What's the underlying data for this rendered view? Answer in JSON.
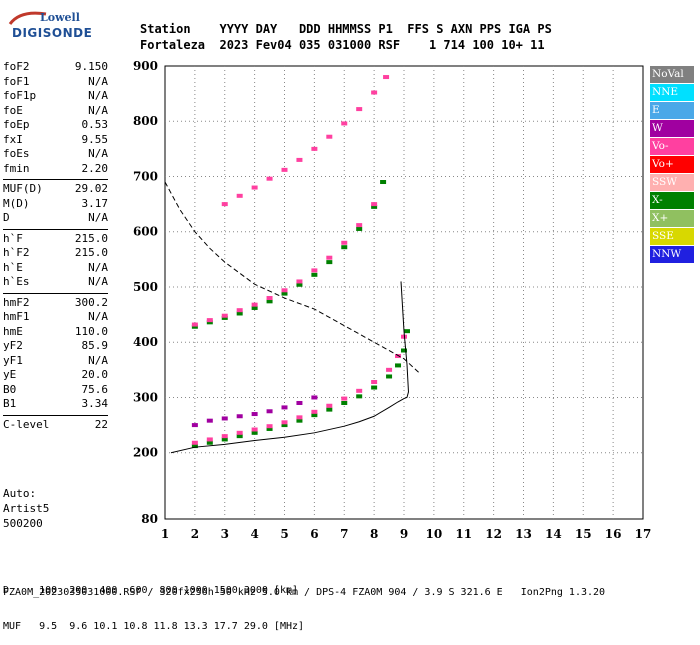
{
  "logo": {
    "line1": "Lowell",
    "line2": "DIGISONDE"
  },
  "header": {
    "row1": "Station    YYYY DAY   DDD HHMMSS P1  FFS S AXN PPS IGA PS",
    "row2": "Fortaleza  2023 Fev04 035 031000 RSF    1 714 100 10+ 11"
  },
  "params": [
    [
      [
        "foF2",
        "9.150"
      ],
      [
        "foF1",
        "N/A"
      ],
      [
        "foF1p",
        "N/A"
      ],
      [
        "foE",
        "N/A"
      ],
      [
        "foEp",
        "0.53"
      ],
      [
        "fxI",
        "9.55"
      ],
      [
        "foEs",
        "N/A"
      ],
      [
        "fmin",
        "2.20"
      ]
    ],
    [
      [
        "MUF(D)",
        "29.02"
      ],
      [
        "M(D)",
        "3.17"
      ],
      [
        "D",
        "N/A"
      ]
    ],
    [
      [
        "h`F",
        "215.0"
      ],
      [
        "h`F2",
        "215.0"
      ],
      [
        "h`E",
        "N/A"
      ],
      [
        "h`Es",
        "N/A"
      ]
    ],
    [
      [
        "hmF2",
        "300.2"
      ],
      [
        "hmF1",
        "N/A"
      ],
      [
        "hmE",
        "110.0"
      ],
      [
        "yF2",
        "85.9"
      ],
      [
        "yF1",
        "N/A"
      ],
      [
        "yE",
        "20.0"
      ],
      [
        "B0",
        "75.6"
      ],
      [
        "B1",
        "3.34"
      ]
    ],
    [
      [
        "C-level",
        "22"
      ]
    ]
  ],
  "auto": {
    "line1": "Auto:",
    "line2": "Artist5",
    "line3": "500200"
  },
  "legend": [
    {
      "label": "NoVal",
      "color": "#808080"
    },
    {
      "label": "NNE",
      "color": "#00e0ff"
    },
    {
      "label": "E",
      "color": "#4aa8e8"
    },
    {
      "label": "W",
      "color": "#a000a0"
    },
    {
      "label": "Vo-",
      "color": "#ff40a0"
    },
    {
      "label": "Vo+",
      "color": "#ff0000"
    },
    {
      "label": "SSW",
      "color": "#ffb0b0"
    },
    {
      "label": "X-",
      "color": "#008000"
    },
    {
      "label": "X+",
      "color": "#90c060"
    },
    {
      "label": "SSE",
      "color": "#d8d800"
    },
    {
      "label": "NNW",
      "color": "#2020e0"
    }
  ],
  "footer": {
    "line1": "D     100  200  400  600  800 1000 1500 3000 [km]",
    "line2": "MUF   9.5  9.6 10.1 10.8 11.8 13.3 17.7 29.0 [MHz]",
    "line3": "FZA0M_2023035031000.RSF / 320fx256h 50 kHz 5.0 km / DPS-4 FZA0M 904 / 3.9 S 321.6 E   Ion2Png 1.3.20"
  },
  "chart_data": {
    "type": "scatter",
    "title": "",
    "xlabel": "",
    "ylabel": "",
    "xlim": [
      1,
      17
    ],
    "ylim": [
      80,
      900
    ],
    "x_ticks": [
      1,
      2,
      3,
      4,
      5,
      6,
      7,
      8,
      9,
      10,
      11,
      12,
      13,
      14,
      15,
      16,
      17
    ],
    "y_ticks": [
      80,
      200,
      300,
      400,
      500,
      600,
      700,
      800,
      900
    ],
    "grid": true,
    "legend_position": "right",
    "series": [
      {
        "name": "X-",
        "color": "#008000",
        "x": [
          2,
          2.5,
          3,
          3.5,
          4,
          4.5,
          5,
          5.5,
          6,
          6.5,
          7,
          7.5,
          8,
          8.5,
          8.8,
          9.0,
          9.1
        ],
        "y": [
          212,
          218,
          224,
          230,
          236,
          243,
          250,
          258,
          268,
          278,
          290,
          302,
          318,
          338,
          358,
          385,
          420
        ]
      },
      {
        "name": "Vo-",
        "color": "#ff40a0",
        "x": [
          2,
          2.5,
          3,
          3.5,
          4,
          4.5,
          5,
          5.5,
          6,
          6.5,
          7,
          7.5,
          8,
          8.5,
          8.8,
          9.0
        ],
        "y": [
          218,
          224,
          230,
          236,
          242,
          248,
          255,
          264,
          274,
          285,
          298,
          312,
          328,
          350,
          375,
          410
        ]
      },
      {
        "name": "W",
        "color": "#a000a0",
        "x": [
          2,
          2.5,
          3,
          3.5,
          4,
          4.5,
          5,
          5.5,
          6
        ],
        "y": [
          250,
          258,
          262,
          266,
          270,
          275,
          282,
          290,
          300
        ]
      },
      {
        "name": "X- (2nd hop)",
        "color": "#008000",
        "x": [
          2,
          2.5,
          3,
          3.5,
          4,
          4.5,
          5,
          5.5,
          6,
          6.5,
          7,
          7.5,
          8,
          8.3
        ],
        "y": [
          428,
          436,
          444,
          452,
          462,
          474,
          488,
          504,
          522,
          545,
          572,
          605,
          645,
          690
        ]
      },
      {
        "name": "Vo- (2nd hop)",
        "color": "#ff40a0",
        "x": [
          2,
          2.5,
          3,
          3.5,
          4,
          4.5,
          5,
          5.5,
          6,
          6.5,
          7,
          7.5,
          8
        ],
        "y": [
          432,
          440,
          448,
          458,
          468,
          480,
          494,
          510,
          530,
          553,
          580,
          612,
          650
        ]
      },
      {
        "name": "Vo- (3rd hop)",
        "color": "#ff40a0",
        "x": [
          3,
          3.5,
          4,
          4.5,
          5,
          5.5,
          6,
          6.5,
          7,
          7.5,
          8,
          8.4
        ],
        "y": [
          650,
          665,
          680,
          696,
          712,
          730,
          750,
          772,
          796,
          822,
          852,
          880
        ]
      }
    ],
    "profile_curve": {
      "x": [
        1.2,
        2,
        3,
        4,
        5,
        6,
        7,
        7.5,
        8,
        8.5,
        8.8,
        9.0,
        9.1,
        9.15,
        9.1,
        9.0,
        8.9
      ],
      "y": [
        200,
        210,
        215,
        222,
        228,
        236,
        248,
        256,
        266,
        282,
        292,
        298,
        300.2,
        310,
        360,
        420,
        510
      ]
    },
    "muf_curve": {
      "x": [
        1,
        1.5,
        2,
        2.5,
        3,
        4,
        5,
        6,
        7,
        8,
        9,
        9.5
      ],
      "y": [
        690,
        640,
        600,
        570,
        545,
        505,
        480,
        460,
        430,
        400,
        370,
        345
      ]
    }
  }
}
